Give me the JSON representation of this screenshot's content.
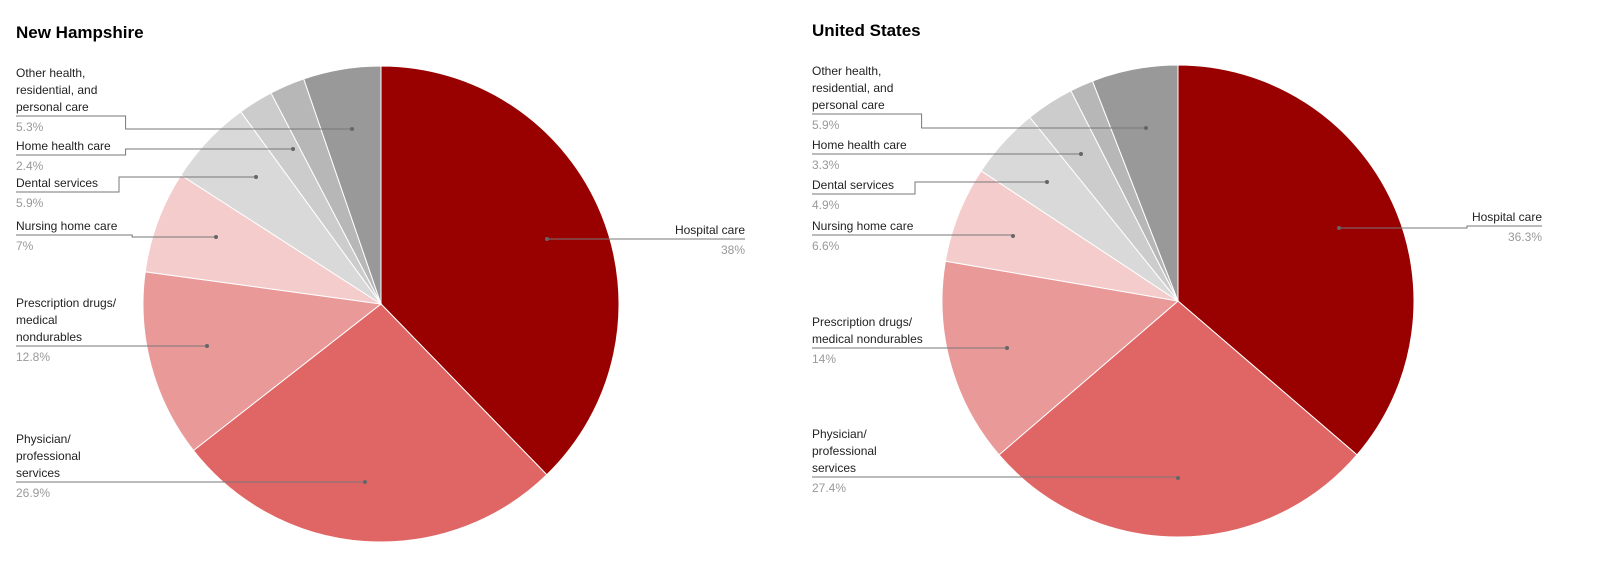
{
  "chart_data": [
    {
      "type": "pie",
      "title": "New Hampshire",
      "colors": [
        "#990000",
        "#e06666",
        "#ea9999",
        "#f4cccc",
        "#d9d9d9",
        "#cccccc",
        "#b7b7b7",
        "#999999"
      ],
      "slices": [
        {
          "label": "Hospital care",
          "value": 38,
          "value_label": "38%"
        },
        {
          "label": "Physician/ professional services",
          "value": 26.9,
          "value_label": "26.9%"
        },
        {
          "label": "Prescription drugs/ medical nondurables",
          "value": 12.8,
          "value_label": "12.8%"
        },
        {
          "label": "Nursing home care",
          "value": 7,
          "value_label": "7%"
        },
        {
          "label": "Dental services",
          "value": 5.9,
          "value_label": "5.9%"
        },
        {
          "label": "",
          "value": 2.4,
          "value_label": ""
        },
        {
          "label": "Home health care",
          "value": 2.4,
          "value_label": "2.4%"
        },
        {
          "label": "Other health, residential, and personal care",
          "value": 5.3,
          "value_label": "5.3%"
        }
      ]
    },
    {
      "type": "pie",
      "title": "United States",
      "colors": [
        "#990000",
        "#e06666",
        "#ea9999",
        "#f4cccc",
        "#d9d9d9",
        "#cccccc",
        "#b7b7b7",
        "#999999"
      ],
      "slices": [
        {
          "label": "Hospital care",
          "value": 36.3,
          "value_label": "36.3%"
        },
        {
          "label": "Physician/ professional services",
          "value": 27.4,
          "value_label": "27.4%"
        },
        {
          "label": "Prescription drugs/ medical nondurables",
          "value": 14,
          "value_label": "14%"
        },
        {
          "label": "Nursing home care",
          "value": 6.6,
          "value_label": "6.6%"
        },
        {
          "label": "Dental services",
          "value": 4.9,
          "value_label": "4.9%"
        },
        {
          "label": "Home health care",
          "value": 3.3,
          "value_label": "3.3%"
        },
        {
          "label": "",
          "value": 1.6,
          "value_label": ""
        },
        {
          "label": "Other health, residential, and personal care",
          "value": 5.9,
          "value_label": "5.9%"
        }
      ]
    }
  ]
}
